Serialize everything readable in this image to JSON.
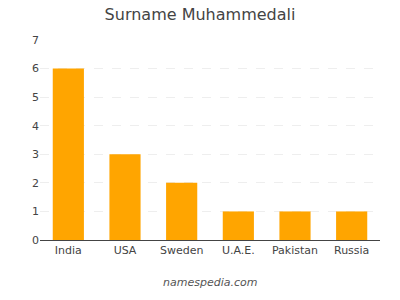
{
  "chart_data": {
    "type": "bar",
    "title": "Surname Muhammedali",
    "categories": [
      "India",
      "USA",
      "Sweden",
      "U.A.E.",
      "Pakistan",
      "Russia"
    ],
    "values": [
      6,
      3,
      2,
      1,
      1,
      1
    ],
    "color": "#FFA500",
    "ylim": [
      0,
      7
    ],
    "yticks": [
      0,
      1,
      2,
      3,
      4,
      5,
      6,
      7
    ],
    "grid": true,
    "annotations": [
      "namespedia.com"
    ]
  }
}
